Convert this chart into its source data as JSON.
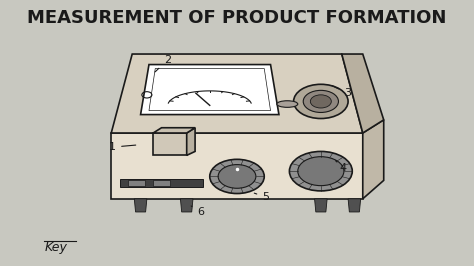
{
  "title": "MEASUREMENT OF PRODUCT FORMATION",
  "title_fontsize": 13,
  "title_fontweight": "bold",
  "bg_color": "#c8c8c0",
  "key_label": "Key",
  "line_color": "#1a1a1a",
  "device_color": "#e8e0d0",
  "device_edge": "#1a1a1a"
}
